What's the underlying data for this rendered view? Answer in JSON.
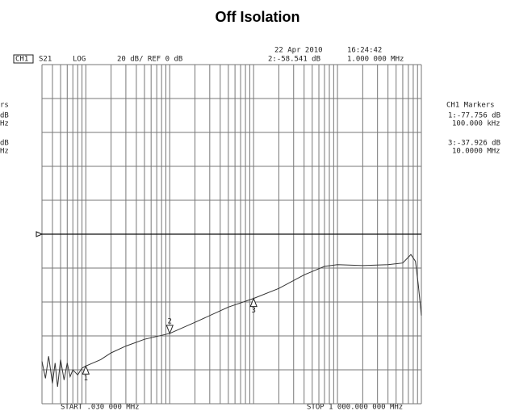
{
  "chart_data": {
    "type": "line",
    "title": "Off Isolation",
    "date": "22 Apr 2010",
    "time": "16:24:42",
    "channel": "CH1",
    "parameter": "S21",
    "format": "LOG",
    "scale": "20 dB/ REF 0 dB",
    "active_marker_value": "2:-58.541 dB",
    "active_marker_freq": "1.000 000 MHz",
    "markers_title": "CH1 Markers",
    "marker_readouts": [
      "1:-77.756 dB",
      "100.000 kHz",
      "3:-37.926 dB",
      "10.0000 MHz"
    ],
    "left_cut_texts": [
      "rs",
      "dB",
      "Hz",
      "dB",
      "Hz"
    ],
    "start_label": "START  .030 000 MHz",
    "stop_label": "STOP 1 000.000 000 MHz",
    "log_x": true,
    "xlim": [
      0.03,
      1000
    ],
    "ylim": [
      -100,
      100
    ],
    "xticks": [
      0.03,
      0.04,
      0.05,
      0.06,
      0.07,
      0.08,
      0.09,
      0.1,
      0.2,
      0.3,
      0.4,
      0.5,
      0.6,
      0.7,
      0.8,
      0.9,
      1,
      2,
      3,
      4,
      5,
      6,
      7,
      8,
      9,
      10,
      20,
      30,
      40,
      50,
      60,
      70,
      80,
      90,
      100,
      200,
      300,
      400,
      500,
      600,
      700,
      800,
      900,
      1000
    ],
    "yticks": [
      -100,
      -80,
      -60,
      -40,
      -20,
      0,
      20,
      40,
      60,
      80,
      100
    ],
    "ref": 0,
    "grid": true,
    "x": [
      0.03,
      0.033,
      0.036,
      0.04,
      0.043,
      0.046,
      0.05,
      0.055,
      0.06,
      0.065,
      0.07,
      0.08,
      0.09,
      0.1,
      0.15,
      0.2,
      0.3,
      0.5,
      1,
      2,
      5,
      10,
      20,
      40,
      70,
      100,
      200,
      400,
      600,
      750,
      850,
      920,
      1000
    ],
    "series": [
      {
        "name": "S21",
        "color": "#333333",
        "values": [
          -75,
          -85,
          -72,
          -88,
          -76,
          -90,
          -74,
          -86,
          -76,
          -84,
          -80,
          -83,
          -79,
          -77.756,
          -74,
          -70,
          -66,
          -62,
          -58.541,
          -52,
          -43,
          -37.926,
          -32,
          -24,
          -19,
          -18,
          -18.5,
          -18,
          -17,
          -12,
          -16,
          -30,
          -48
        ]
      }
    ],
    "markers": [
      {
        "label": "1",
        "x": 0.1,
        "value": -77.756
      },
      {
        "label": "2",
        "x": 1,
        "value": -58.541
      },
      {
        "label": "3",
        "x": 10,
        "value": -37.926
      }
    ]
  }
}
